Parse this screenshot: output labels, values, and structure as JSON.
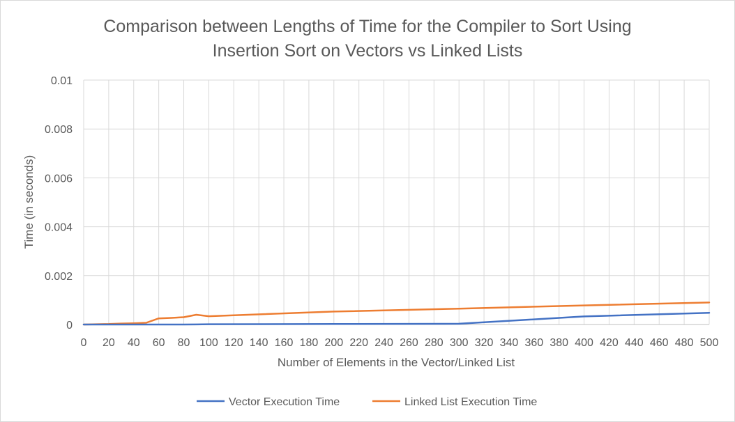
{
  "chart_data": {
    "type": "line",
    "title_lines": [
      "Comparison between Lengths of Time for the Compiler to Sort Using",
      "Insertion Sort on Vectors vs Linked Lists"
    ],
    "xlabel": "Number of Elements in the Vector/Linked List",
    "ylabel": "Time (in seconds)",
    "x_ticks": [
      0,
      20,
      40,
      60,
      80,
      100,
      120,
      140,
      160,
      180,
      200,
      220,
      240,
      260,
      280,
      300,
      320,
      340,
      360,
      380,
      400,
      420,
      440,
      460,
      480,
      500
    ],
    "y_ticks": [
      "0",
      "0.002",
      "0.004",
      "0.006",
      "0.008",
      "0.01"
    ],
    "xlim": [
      0,
      500
    ],
    "ylim": [
      0,
      0.01
    ],
    "grid": true,
    "legend_position": "bottom",
    "series": [
      {
        "name": "Vector Execution Time",
        "color": "#4472c4",
        "points": [
          [
            0,
            0
          ],
          [
            10,
            0
          ],
          [
            20,
            0
          ],
          [
            30,
            0
          ],
          [
            40,
            0
          ],
          [
            50,
            0
          ],
          [
            60,
            0
          ],
          [
            70,
            0
          ],
          [
            80,
            0
          ],
          [
            90,
            3e-06
          ],
          [
            100,
            1e-05
          ],
          [
            200,
            2e-05
          ],
          [
            300,
            3e-05
          ],
          [
            400,
            0.00033
          ],
          [
            500,
            0.00048
          ]
        ]
      },
      {
        "name": "Linked List Execution Time",
        "color": "#ed7d31",
        "points": [
          [
            0,
            0
          ],
          [
            10,
            1e-05
          ],
          [
            20,
            2e-05
          ],
          [
            30,
            4e-05
          ],
          [
            40,
            5e-05
          ],
          [
            50,
            7e-05
          ],
          [
            60,
            0.00025
          ],
          [
            70,
            0.00027
          ],
          [
            80,
            0.0003
          ],
          [
            90,
            0.0004
          ],
          [
            100,
            0.00034
          ],
          [
            200,
            0.00053
          ],
          [
            300,
            0.00065
          ],
          [
            400,
            0.00078
          ],
          [
            500,
            0.0009
          ]
        ]
      }
    ]
  }
}
